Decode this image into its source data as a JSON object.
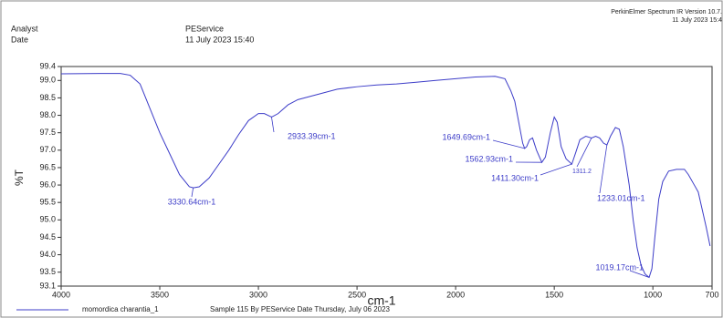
{
  "header": {
    "analyst_label": "Analyst",
    "date_label": "Date",
    "analyst": "PEService",
    "date": "11 July 2023 15:40",
    "software": "PerkinElmer Spectrum IR Version 10.7.",
    "software_date": "11 July 2023 15:4"
  },
  "chart_data": {
    "type": "line",
    "x_label": "cm-1",
    "y_label": "%T",
    "xlim": [
      4000,
      700
    ],
    "ylim": [
      93.1,
      99.4
    ],
    "xticks": [
      4000,
      3500,
      3000,
      2500,
      2000,
      1500,
      1000,
      700
    ],
    "yticks": [
      93.1,
      93.5,
      {
        "value": 94,
        "label": "94.0"
      },
      94.5,
      {
        "value": 95,
        "label": "95.0"
      },
      95.5,
      {
        "value": 96,
        "label": "96.0"
      },
      96.5,
      {
        "value": 97,
        "label": "97.0"
      },
      97.5,
      {
        "value": 98,
        "label": "98.0"
      },
      98.5,
      {
        "value": 99,
        "label": "99.0"
      },
      99.4
    ],
    "series": [
      {
        "name": "momordica charantia_1",
        "description": "Sample 115 By PEService Date Thursday, July 06 2023",
        "color": "#3c3cc8",
        "x": [
          4000,
          3800,
          3700,
          3650,
          3600,
          3550,
          3500,
          3450,
          3400,
          3350,
          3330,
          3300,
          3250,
          3200,
          3150,
          3100,
          3050,
          3000,
          2970,
          2933,
          2900,
          2850,
          2800,
          2700,
          2600,
          2500,
          2400,
          2300,
          2200,
          2100,
          2000,
          1900,
          1800,
          1750,
          1720,
          1700,
          1680,
          1660,
          1650,
          1640,
          1625,
          1610,
          1590,
          1563,
          1545,
          1520,
          1500,
          1485,
          1465,
          1440,
          1411,
          1390,
          1370,
          1340,
          1311,
          1290,
          1270,
          1250,
          1233,
          1215,
          1190,
          1170,
          1150,
          1120,
          1100,
          1080,
          1060,
          1040,
          1019,
          1005,
          990,
          970,
          950,
          920,
          880,
          840,
          820,
          790,
          770,
          750,
          730,
          710
        ],
        "values": [
          99.19,
          99.2,
          99.2,
          99.15,
          98.9,
          98.2,
          97.5,
          96.9,
          96.3,
          95.95,
          95.92,
          95.95,
          96.2,
          96.6,
          97.0,
          97.45,
          97.85,
          98.05,
          98.05,
          97.95,
          98.05,
          98.3,
          98.45,
          98.6,
          98.75,
          98.82,
          98.87,
          98.9,
          98.95,
          99.0,
          99.05,
          99.1,
          99.12,
          99.05,
          98.7,
          98.4,
          97.8,
          97.2,
          97.05,
          97.1,
          97.3,
          97.35,
          97.0,
          96.65,
          96.8,
          97.5,
          97.95,
          97.8,
          97.1,
          96.75,
          96.6,
          96.95,
          97.3,
          97.4,
          97.35,
          97.4,
          97.35,
          97.2,
          97.15,
          97.4,
          97.65,
          97.6,
          97.1,
          96.0,
          95.0,
          94.2,
          93.7,
          93.45,
          93.35,
          93.6,
          94.5,
          95.6,
          96.1,
          96.4,
          96.45,
          96.45,
          96.3,
          96.0,
          95.8,
          95.3,
          94.8,
          94.25
        ]
      }
    ],
    "annotations": [
      {
        "text": "3330.64cm-1",
        "x": 3330.64,
        "y": 95.92
      },
      {
        "text": "2933.39cm-1",
        "x": 2933.39,
        "y": 97.95
      },
      {
        "text": "1649.69cm-1",
        "x": 1649.69,
        "y": 97.05
      },
      {
        "text": "1562.93cm-1",
        "x": 1562.93,
        "y": 96.65
      },
      {
        "text": "1411.30cm-1",
        "x": 1411.3,
        "y": 96.6
      },
      {
        "text": "1311.2",
        "x": 1311.2,
        "y": 97.35
      },
      {
        "text": "1233.01cm-1",
        "x": 1233.01,
        "y": 97.15
      },
      {
        "text": "1019.17cm-1",
        "x": 1019.17,
        "y": 93.35
      }
    ]
  }
}
